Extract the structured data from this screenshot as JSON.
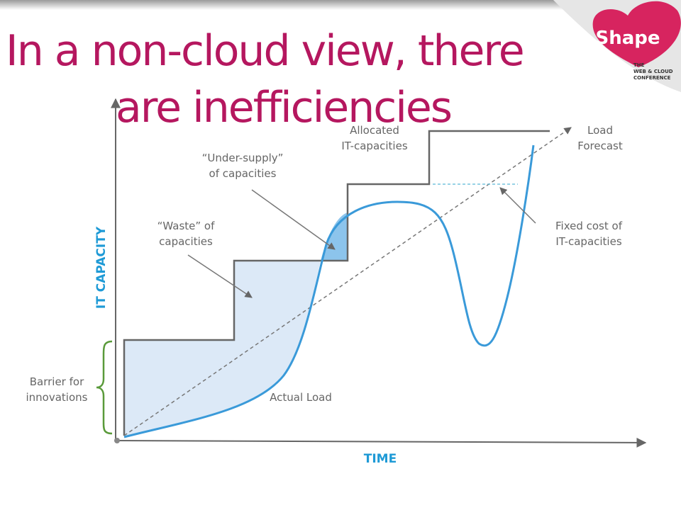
{
  "title": [
    "In a non-cloud view, there",
    "are inefficiencies"
  ],
  "logo": {
    "name": "Shape",
    "tagline": [
      "THE",
      "WEB & CLOUD",
      "CONFERENCE"
    ]
  },
  "axes": {
    "y": "IT CAPACITY",
    "x": "TIME"
  },
  "labels": {
    "allocated": [
      "Allocated",
      "IT-capacities"
    ],
    "forecast": [
      "Load",
      "Forecast"
    ],
    "under_supply": [
      "“Under-supply”",
      "of capacities"
    ],
    "waste": [
      "“Waste” of",
      "capacities"
    ],
    "fixed_cost": [
      "Fixed cost of",
      "IT-capacities"
    ],
    "barrier": [
      "Barrier for",
      "innovations"
    ],
    "actual_load": "Actual Load"
  }
}
